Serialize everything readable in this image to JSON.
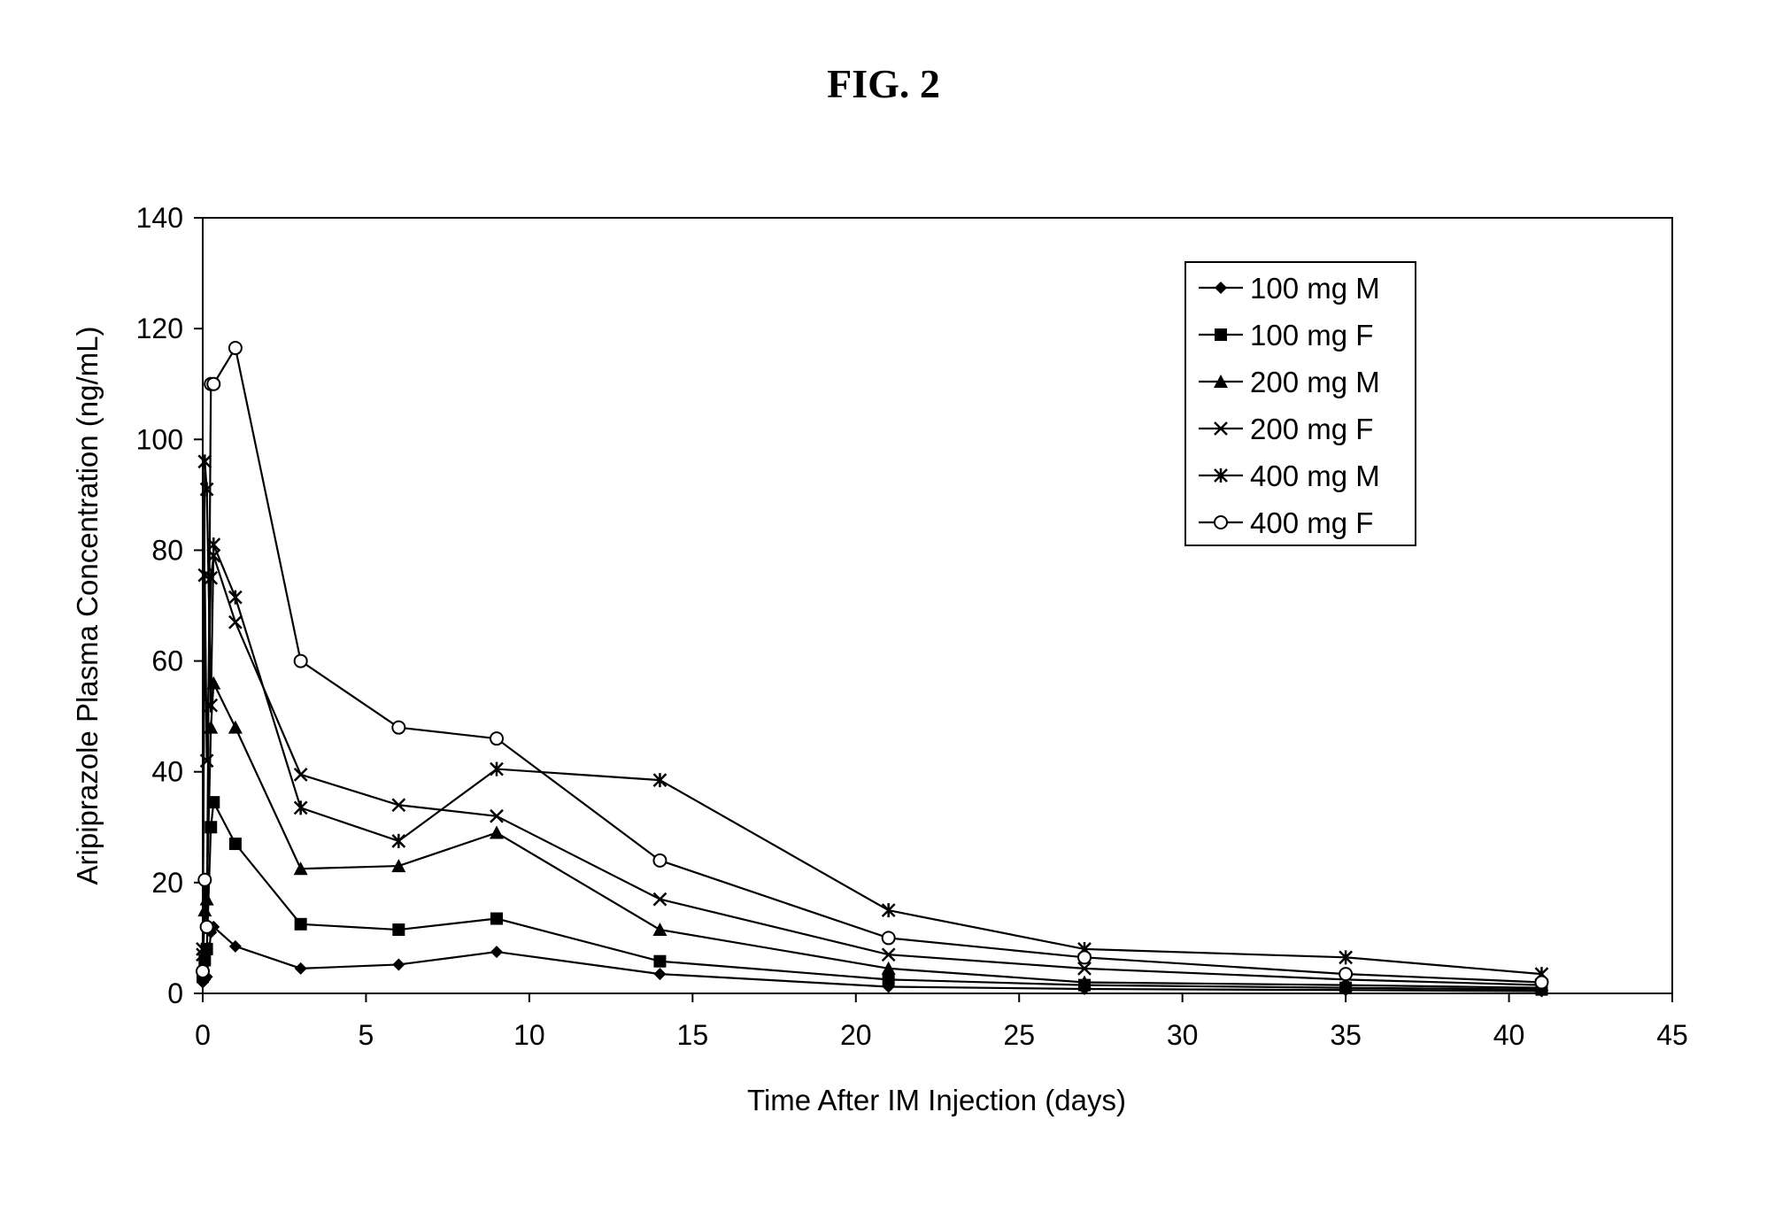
{
  "figure": {
    "title": "FIG. 2"
  },
  "chart_data": {
    "type": "line",
    "title": "FIG. 2",
    "xlabel": "Time After IM Injection (days)",
    "ylabel": "Aripiprazole Plasma Concentration (ng/mL)",
    "xlim": [
      0,
      45
    ],
    "ylim": [
      0,
      140
    ],
    "xticks": [
      0,
      5,
      10,
      15,
      20,
      25,
      30,
      35,
      40,
      45
    ],
    "yticks": [
      0,
      20,
      40,
      60,
      80,
      100,
      120,
      140
    ],
    "grid": false,
    "legend_position": "top-right",
    "series": [
      {
        "name": "100 mg M",
        "marker": "diamond",
        "color": "#000000",
        "x": [
          0,
          0.0625,
          0.125,
          0.25,
          0.333,
          1,
          3,
          6,
          9,
          14,
          21,
          27,
          35,
          41
        ],
        "y": [
          2,
          2.5,
          3,
          11,
          12,
          8.5,
          4.5,
          5.2,
          7.5,
          3.5,
          1.2,
          0.8,
          0.6,
          0.4
        ]
      },
      {
        "name": "100 mg F",
        "marker": "square",
        "color": "#000000",
        "x": [
          0,
          0.0625,
          0.125,
          0.25,
          0.333,
          1,
          3,
          6,
          9,
          14,
          21,
          27,
          35,
          41
        ],
        "y": [
          3,
          6,
          8,
          30,
          34.5,
          27,
          12.5,
          11.5,
          13.5,
          5.8,
          2.5,
          1.5,
          1,
          0.7
        ]
      },
      {
        "name": "200 mg M",
        "marker": "triangle",
        "color": "#000000",
        "x": [
          0,
          0.0625,
          0.125,
          0.25,
          0.333,
          1,
          3,
          6,
          9,
          14,
          21,
          27,
          35,
          41
        ],
        "y": [
          5,
          15,
          17,
          48,
          56,
          48,
          22.5,
          23,
          29,
          11.5,
          4.5,
          2,
          1.5,
          1
        ]
      },
      {
        "name": "200 mg F",
        "marker": "x",
        "color": "#000000",
        "x": [
          0,
          0.0625,
          0.125,
          0.25,
          0.333,
          1,
          3,
          6,
          9,
          14,
          21,
          27,
          35,
          41
        ],
        "y": [
          7,
          75.5,
          42,
          75,
          79,
          67,
          39.5,
          34,
          32,
          17,
          7,
          4.5,
          2.5,
          1.5
        ]
      },
      {
        "name": "400 mg M",
        "marker": "star",
        "color": "#000000",
        "x": [
          0,
          0.0625,
          0.125,
          0.25,
          0.333,
          1,
          3,
          6,
          9,
          14,
          21,
          27,
          35,
          41
        ],
        "y": [
          8,
          96,
          91,
          52,
          81,
          71.5,
          33.5,
          27.5,
          40.5,
          38.5,
          15,
          8,
          6.5,
          3.5
        ]
      },
      {
        "name": "400 mg F",
        "marker": "circle",
        "color": "#000000",
        "x": [
          0,
          0.0625,
          0.125,
          0.25,
          0.333,
          1,
          3,
          6,
          9,
          14,
          21,
          27,
          35,
          41
        ],
        "y": [
          4,
          20.5,
          12,
          110,
          110,
          116.5,
          60,
          48,
          46,
          24,
          10,
          6.5,
          3.5,
          2
        ]
      }
    ]
  }
}
